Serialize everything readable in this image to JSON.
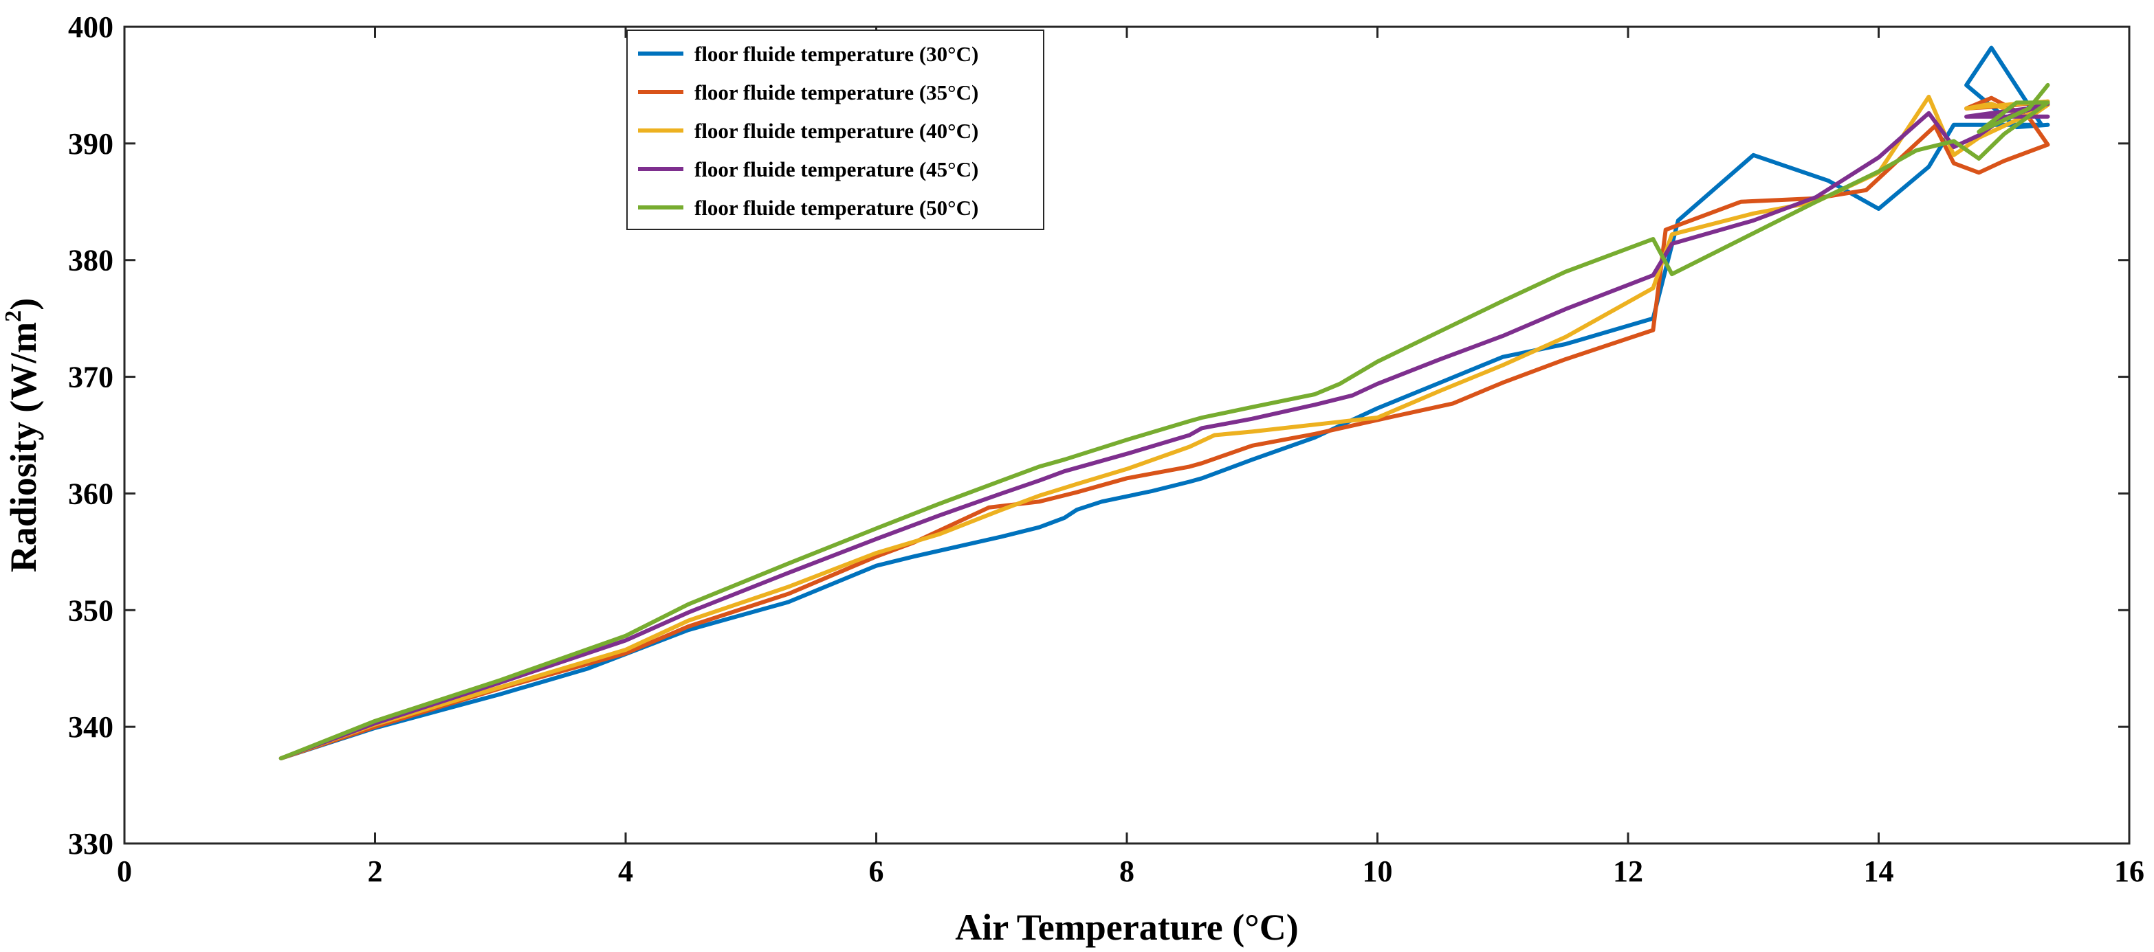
{
  "chart_data": {
    "type": "line",
    "title": "",
    "xlabel": "Air Temperature (°C)",
    "ylabel_main": "Radiosity (W/m",
    "ylabel_sup": "2",
    "ylabel_close": ")",
    "xlim": [
      0,
      16
    ],
    "ylim": [
      330,
      400
    ],
    "xticks": [
      0,
      2,
      4,
      6,
      8,
      10,
      12,
      14,
      16
    ],
    "yticks": [
      330,
      340,
      350,
      360,
      370,
      380,
      390,
      400
    ],
    "grid": false,
    "legend_position": "top-left",
    "series": [
      {
        "name": "floor fluide temperature (30°C)",
        "color": "#0072BD",
        "x": [
          1.25,
          2.0,
          3.0,
          3.7,
          4.5,
          5.3,
          6.0,
          6.3,
          7.0,
          7.3,
          7.5,
          7.6,
          7.8,
          8.2,
          8.5,
          8.6,
          9.0,
          9.5,
          10.0,
          10.5,
          11.0,
          11.5,
          12.2,
          12.4,
          13.0,
          13.6,
          14.0,
          14.4,
          14.6,
          15.0,
          15.3,
          14.9,
          14.7,
          15.1,
          15.35
        ],
        "y": [
          337.3,
          339.9,
          342.8,
          345.0,
          348.3,
          350.7,
          353.8,
          354.6,
          356.3,
          357.1,
          357.9,
          358.6,
          359.3,
          360.2,
          361.0,
          361.3,
          362.9,
          364.8,
          367.3,
          369.5,
          371.7,
          372.8,
          375.0,
          383.4,
          389.0,
          386.8,
          384.4,
          388.0,
          391.6,
          391.6,
          391.6,
          398.2,
          395.0,
          391.4,
          391.6
        ]
      },
      {
        "name": "floor fluide temperature (35°C)",
        "color": "#D95319",
        "x": [
          1.25,
          2.0,
          3.0,
          4.0,
          4.5,
          5.3,
          6.0,
          6.3,
          6.9,
          7.3,
          7.6,
          8.0,
          8.5,
          8.6,
          9.0,
          9.5,
          10.0,
          10.6,
          11.0,
          11.5,
          12.2,
          12.3,
          12.9,
          13.5,
          13.9,
          14.45,
          14.6,
          14.8,
          15.0,
          15.35,
          15.2,
          14.9,
          14.7,
          15.0,
          15.35
        ],
        "y": [
          337.3,
          340.0,
          343.3,
          346.3,
          348.6,
          351.4,
          354.6,
          355.8,
          358.8,
          359.3,
          360.1,
          361.3,
          362.3,
          362.6,
          364.1,
          365.1,
          366.3,
          367.7,
          369.5,
          371.5,
          374.0,
          382.6,
          385.0,
          385.3,
          386.0,
          391.5,
          388.3,
          387.5,
          388.5,
          389.9,
          392.2,
          393.9,
          393.0,
          393.2,
          393.6
        ]
      },
      {
        "name": "floor fluide temperature (40°C)",
        "color": "#EDB120",
        "x": [
          1.25,
          2.0,
          3.0,
          4.0,
          4.5,
          5.3,
          6.0,
          6.5,
          7.0,
          7.3,
          7.6,
          8.0,
          8.5,
          8.7,
          9.0,
          9.5,
          10.0,
          10.5,
          11.0,
          11.5,
          12.2,
          12.35,
          13.0,
          13.5,
          14.0,
          14.4,
          14.6,
          14.8,
          15.0,
          15.35,
          15.2,
          14.9,
          14.7,
          15.0,
          15.35
        ],
        "y": [
          337.3,
          340.2,
          343.4,
          346.6,
          349.1,
          352.0,
          354.9,
          356.5,
          358.6,
          359.8,
          360.8,
          362.1,
          364.0,
          365.0,
          365.3,
          365.9,
          366.5,
          368.8,
          371.0,
          373.4,
          377.6,
          382.2,
          384.0,
          385.0,
          387.5,
          394.0,
          389.0,
          390.5,
          391.5,
          393.3,
          392.2,
          393.4,
          393.0,
          393.3,
          393.6
        ]
      },
      {
        "name": "floor fluide temperature (45°C)",
        "color": "#7E2F8E",
        "x": [
          1.25,
          2.0,
          3.0,
          4.0,
          4.5,
          5.3,
          6.0,
          6.5,
          7.0,
          7.3,
          7.5,
          8.0,
          8.5,
          8.6,
          9.0,
          9.5,
          9.8,
          10.0,
          10.5,
          11.0,
          11.5,
          12.2,
          12.35,
          13.0,
          13.5,
          14.0,
          14.4,
          14.6,
          14.8,
          15.0,
          15.35,
          15.2,
          14.9,
          14.7,
          15.0,
          15.35
        ],
        "y": [
          337.3,
          340.3,
          343.8,
          347.4,
          349.8,
          353.2,
          356.1,
          358.1,
          360.0,
          361.1,
          361.9,
          363.4,
          365.0,
          365.6,
          366.4,
          367.6,
          368.4,
          369.4,
          371.5,
          373.5,
          375.8,
          378.7,
          381.4,
          383.4,
          385.4,
          388.8,
          392.6,
          389.7,
          390.7,
          392.2,
          393.4,
          393.0,
          392.6,
          392.3,
          392.3,
          392.3
        ]
      },
      {
        "name": "floor fluide temperature (50°C)",
        "color": "#77AC30",
        "x": [
          1.25,
          2.0,
          3.0,
          4.0,
          4.5,
          5.3,
          6.0,
          6.5,
          7.0,
          7.3,
          7.5,
          8.0,
          8.5,
          8.6,
          9.0,
          9.5,
          9.7,
          10.0,
          10.5,
          11.0,
          11.5,
          12.2,
          12.35,
          13.0,
          13.5,
          14.0,
          14.3,
          14.6,
          14.8,
          15.0,
          15.35,
          15.1,
          14.8,
          15.0,
          15.2,
          15.35
        ],
        "y": [
          337.3,
          340.5,
          344.0,
          347.8,
          350.5,
          354.0,
          357.0,
          359.1,
          361.1,
          362.3,
          362.9,
          364.6,
          366.2,
          366.5,
          367.4,
          368.5,
          369.4,
          371.3,
          373.9,
          376.5,
          379.0,
          381.8,
          378.8,
          382.3,
          385.0,
          387.6,
          389.4,
          390.2,
          388.7,
          390.8,
          393.5,
          393.5,
          391.0,
          392.0,
          393.0,
          395.0
        ]
      }
    ]
  }
}
